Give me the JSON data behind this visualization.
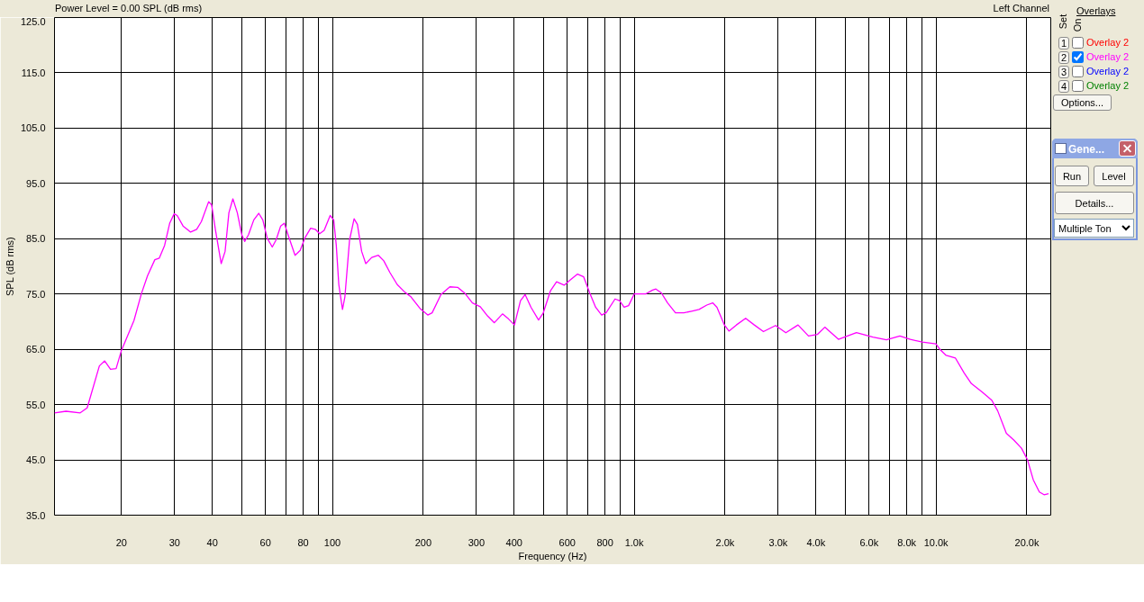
{
  "chart_data": {
    "type": "line",
    "title": "Power Level = 0.00 SPL (dB rms)",
    "xlabel": "Frequency (Hz)",
    "ylabel": "SPL (dB rms)",
    "annotations": [
      "Left Channel",
      "Overlays",
      "Set",
      "On",
      "1",
      "2",
      "3",
      "4",
      "Overlay 2",
      "Overlay 2",
      "Overlay 2",
      "Options...",
      "Gene...",
      "Run",
      "Level",
      "Details...",
      "Multiple Ton"
    ],
    "x": [
      12,
      13.1,
      14.6,
      15.4,
      16.9,
      17.6,
      18.4,
      19.2,
      20,
      22,
      23.3,
      24.4,
      25.8,
      26.7,
      27.8,
      28.9,
      29.9,
      30.6,
      32,
      33.9,
      35.5,
      36.8,
      38.9,
      39.8,
      41,
      42.8,
      44.1,
      45.4,
      46.8,
      48.4,
      50.1,
      51.2,
      52.7,
      54.9,
      57,
      58.8,
      60.8,
      63.2,
      65.1,
      67.4,
      69.3,
      71.3,
      75.2,
      78.2,
      81,
      84.7,
      87.7,
      90.7,
      93.9,
      98.3,
      101,
      103,
      105,
      108,
      110,
      114,
      118,
      121,
      125,
      129,
      135,
      142,
      148,
      155,
      164,
      174,
      182,
      195,
      207,
      214,
      229,
      245,
      260,
      275,
      291,
      309,
      327,
      344,
      366,
      383,
      401,
      420,
      435,
      455,
      482,
      499,
      528,
      553,
      586,
      613,
      649,
      680,
      711,
      745,
      780,
      807,
      864,
      894,
      926,
      958,
      1000,
      1090,
      1150,
      1180,
      1230,
      1290,
      1370,
      1460,
      1550,
      1640,
      1740,
      1820,
      1880,
      1990,
      2060,
      2180,
      2340,
      2500,
      2680,
      2940,
      3180,
      3490,
      3780,
      4050,
      4280,
      4750,
      5450,
      6180,
      6850,
      7590,
      8220,
      9010,
      9990,
      10300,
      10800,
      11600,
      12400,
      13100,
      14200,
      15300,
      16000,
      17100,
      18100,
      19200,
      20100,
      21000,
      22000,
      22800,
      23600
    ],
    "series": [
      {
        "name": "Overlay 2",
        "color": "#ff00ff",
        "values": [
          53.5,
          53.8,
          53.5,
          54.4,
          62.0,
          62.9,
          61.4,
          61.5,
          64.8,
          70.2,
          75.1,
          78.3,
          81.2,
          81.5,
          83.8,
          87.8,
          89.5,
          89.2,
          87.3,
          86.2,
          86.7,
          88.1,
          91.7,
          91.1,
          86.5,
          80.5,
          82.7,
          89.7,
          92.2,
          89.7,
          85.7,
          84.5,
          85.7,
          88.4,
          89.6,
          88.4,
          85.1,
          83.5,
          84.8,
          87.3,
          87.8,
          85.7,
          82.0,
          82.9,
          85.1,
          86.9,
          86.7,
          85.9,
          86.5,
          89.2,
          88.4,
          83.8,
          76.7,
          72.2,
          74.5,
          84.8,
          88.6,
          87.6,
          82.7,
          80.5,
          81.6,
          82.0,
          81.0,
          78.9,
          76.7,
          75.3,
          74.5,
          72.4,
          71.2,
          71.6,
          74.9,
          76.3,
          76.2,
          75.1,
          73.4,
          72.7,
          71.0,
          69.8,
          71.4,
          70.5,
          69.4,
          73.8,
          74.9,
          72.6,
          70.3,
          71.5,
          75.6,
          77.2,
          76.6,
          77.5,
          78.6,
          78.1,
          75.3,
          72.6,
          71.2,
          71.6,
          74.1,
          73.8,
          72.6,
          72.9,
          75.0,
          75.0,
          75.7,
          75.9,
          75.2,
          73.4,
          71.6,
          71.6,
          71.9,
          72.2,
          73.0,
          73.4,
          72.6,
          69.4,
          68.3,
          69.4,
          70.6,
          69.4,
          68.2,
          69.3,
          68.0,
          69.4,
          67.4,
          67.7,
          69.0,
          66.8,
          68.0,
          67.2,
          66.7,
          67.4,
          66.8,
          66.3,
          66.0,
          65.0,
          63.9,
          63.4,
          60.7,
          58.8,
          57.3,
          55.8,
          53.9,
          49.8,
          48.6,
          47.1,
          45.0,
          41.4,
          39.2,
          38.7,
          38.9
        ]
      }
    ],
    "log": "x",
    "xlim": [
      12,
      24000
    ],
    "ylim": [
      35,
      125
    ],
    "xticks": [
      20,
      30,
      40,
      {
        "value": 50,
        "label": null
      },
      60,
      {
        "value": 70,
        "label": null
      },
      80,
      {
        "value": 90,
        "label": null
      },
      100,
      200,
      300,
      400,
      {
        "value": 500,
        "label": null
      },
      600,
      {
        "value": 700,
        "label": null
      },
      800,
      {
        "value": 900,
        "label": null
      },
      {
        "value": 1000,
        "label": "1.0k"
      },
      {
        "value": 2000,
        "label": "2.0k"
      },
      {
        "value": 3000,
        "label": "3.0k"
      },
      {
        "value": 4000,
        "label": "4.0k"
      },
      {
        "value": 5000,
        "label": null
      },
      {
        "value": 6000,
        "label": "6.0k"
      },
      {
        "value": 7000,
        "label": null
      },
      {
        "value": 8000,
        "label": "8.0k"
      },
      {
        "value": 9000,
        "label": null
      },
      {
        "value": 10000,
        "label": "10.0k"
      },
      {
        "value": 20000,
        "label": "20.0k"
      }
    ],
    "yticks": [
      {
        "value": 35,
        "label": "35.0"
      },
      {
        "value": 45,
        "label": "45.0"
      },
      {
        "value": 55,
        "label": "55.0"
      },
      {
        "value": 65,
        "label": "65.0"
      },
      {
        "value": 75,
        "label": "75.0"
      },
      {
        "value": 85,
        "label": "85.0"
      },
      {
        "value": 95,
        "label": "95.0"
      },
      {
        "value": 105,
        "label": "105.0"
      },
      {
        "value": 115,
        "label": "115.0"
      },
      {
        "value": 125,
        "label": "125.0"
      }
    ],
    "grid": true,
    "legend": "right"
  }
}
